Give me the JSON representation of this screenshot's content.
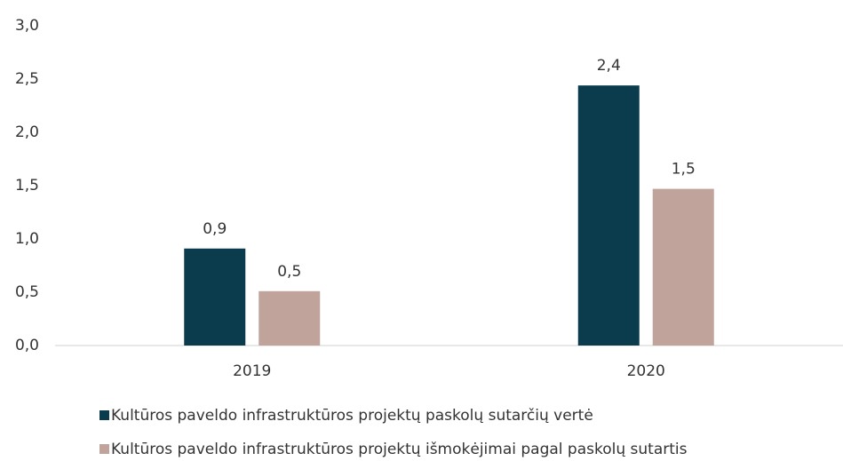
{
  "chart_data": {
    "type": "bar",
    "categories": [
      "2019",
      "2020"
    ],
    "series": [
      {
        "name": "Kultūros paveldo infrastruktūros projektų paskolų sutarčių vertė",
        "color": "#0b3c4d",
        "values": [
          0.91,
          2.44
        ],
        "value_labels": [
          "0,9",
          "2,4"
        ]
      },
      {
        "name": "Kultūros paveldo infrastruktūros projektų išmokėjimai pagal paskolų sutartis",
        "color": "#c0a39a",
        "values": [
          0.51,
          1.47
        ],
        "value_labels": [
          "0,5",
          "1,5"
        ]
      }
    ],
    "ylim": [
      0,
      3
    ],
    "yticks": [
      {
        "value": 0,
        "label": "0,0"
      },
      {
        "value": 0.5,
        "label": "0,5"
      },
      {
        "value": 1,
        "label": "1,0"
      },
      {
        "value": 1.5,
        "label": "1,5"
      },
      {
        "value": 2,
        "label": "2,0"
      },
      {
        "value": 2.5,
        "label": "2,5"
      },
      {
        "value": 3,
        "label": "3,0"
      }
    ],
    "grid": false,
    "legend": "bottom"
  }
}
